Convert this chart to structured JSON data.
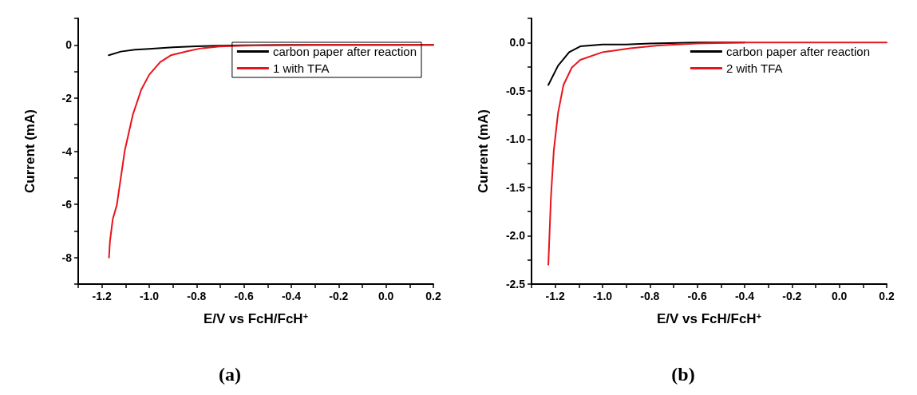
{
  "chart_data": [
    {
      "type": "line",
      "title": "(a)",
      "xlabel": "E/V vs FcH/FcH$^{+}$",
      "ylabel": "Current (mA)",
      "legend": "top right",
      "grid": false,
      "marker": "none",
      "line_style": "solid",
      "xlim": [
        -1.3,
        0.2
      ],
      "ylim": [
        -9,
        1
      ],
      "xticks": [
        {
          "value": -1.3,
          "label": null
        },
        -1.2,
        {
          "value": -1.1,
          "label": null
        },
        {
          "value": -1,
          "label": "-1.0"
        },
        {
          "value": -0.9,
          "label": null
        },
        -0.8,
        {
          "value": -0.7,
          "label": null
        },
        -0.6,
        {
          "value": -0.5,
          "label": null
        },
        -0.4,
        {
          "value": -0.3,
          "label": null
        },
        -0.2,
        {
          "value": -0.1,
          "label": null
        },
        {
          "value": 0,
          "label": "0.0"
        },
        {
          "value": 0.1,
          "label": null
        },
        0.2
      ],
      "yticks": [
        {
          "value": -9,
          "label": null
        },
        -8,
        {
          "value": -7,
          "label": null
        },
        -6,
        {
          "value": -5,
          "label": null
        },
        -4,
        {
          "value": -3,
          "label": null
        },
        -2,
        {
          "value": -1,
          "label": null
        },
        0,
        {
          "value": 1,
          "label": null
        }
      ],
      "series": [
        {
          "name": "carbon paper after reaction",
          "color": "#000000",
          "x": [
            -1.171,
            -1.12,
            -1.06,
            -1.0,
            -0.9,
            -0.8,
            -0.7,
            -0.6,
            -0.4,
            -0.2,
            0.0,
            0.2
          ],
          "values": [
            -0.39,
            -0.25,
            -0.18,
            -0.15,
            -0.09,
            -0.05,
            -0.03,
            -0.01,
            0,
            0,
            0,
            0
          ]
        },
        {
          "name": "1 with TFA",
          "color": "#e8141c",
          "x": [
            -1.17,
            -1.166,
            -1.154,
            -1.137,
            -1.103,
            -1.069,
            -1.034,
            -1.0,
            -0.954,
            -0.909,
            -0.84,
            -0.783,
            -0.703,
            -0.6,
            -0.5,
            -0.3,
            0.0,
            0.2
          ],
          "values": [
            -8.0,
            -7.4,
            -6.55,
            -6.03,
            -3.96,
            -2.62,
            -1.69,
            -1.12,
            -0.65,
            -0.39,
            -0.24,
            -0.13,
            -0.06,
            -0.03,
            -0.01,
            0,
            0,
            0
          ]
        }
      ]
    },
    {
      "type": "line",
      "title": "(b)",
      "xlabel": "E/V vs FcH/FcH$^{+}$",
      "ylabel": "Current (mA)",
      "legend": "top right",
      "grid": false,
      "marker": "none",
      "line_style": "solid",
      "xlim": [
        -1.3,
        0.2
      ],
      "ylim": [
        -2.5,
        0.25
      ],
      "xticks": [
        {
          "value": -1.3,
          "label": null
        },
        -1.2,
        {
          "value": -1.1,
          "label": null
        },
        {
          "value": -1,
          "label": "-1.0"
        },
        {
          "value": -0.9,
          "label": null
        },
        -0.8,
        {
          "value": -0.7,
          "label": null
        },
        -0.6,
        {
          "value": -0.5,
          "label": null
        },
        -0.4,
        {
          "value": -0.3,
          "label": null
        },
        -0.2,
        {
          "value": -0.1,
          "label": null
        },
        {
          "value": 0,
          "label": "0.0"
        },
        {
          "value": 0.1,
          "label": null
        },
        0.2
      ],
      "yticks": [
        -2.5,
        {
          "value": -2.25,
          "label": null
        },
        {
          "value": -2,
          "label": "-2.0"
        },
        {
          "value": -1.75,
          "label": null
        },
        -1.5,
        {
          "value": -1.25,
          "label": null
        },
        {
          "value": -1,
          "label": "-1.0"
        },
        {
          "value": -0.75,
          "label": null
        },
        -0.5,
        {
          "value": -0.25,
          "label": null
        },
        {
          "value": 0,
          "label": "0.0"
        },
        {
          "value": 0.25,
          "label": null
        }
      ],
      "series": [
        {
          "name": "carbon paper after reaction",
          "color": "#000000",
          "x": [
            -1.229,
            -1.188,
            -1.141,
            -1.094,
            -1.0,
            -0.9,
            -0.8,
            -0.6,
            -0.4,
            null,
            null,
            null
          ],
          "values": [
            -0.44,
            -0.24,
            -0.1,
            -0.04,
            -0.02,
            -0.02,
            -0.01,
            0,
            0,
            null,
            null,
            null
          ]
        },
        {
          "name": "2 with TFA",
          "color": "#e8141c",
          "x": [
            -1.229,
            -1.218,
            -1.206,
            -1.188,
            -1.165,
            -1.13,
            -1.094,
            -1.0,
            -0.883,
            -0.765,
            -0.6,
            -0.4,
            -0.2,
            0.0,
            0.2
          ],
          "values": [
            -2.3,
            -1.6,
            -1.12,
            -0.73,
            -0.44,
            -0.26,
            -0.18,
            -0.1,
            -0.06,
            -0.03,
            -0.01,
            0,
            0,
            0,
            0
          ]
        }
      ]
    }
  ]
}
